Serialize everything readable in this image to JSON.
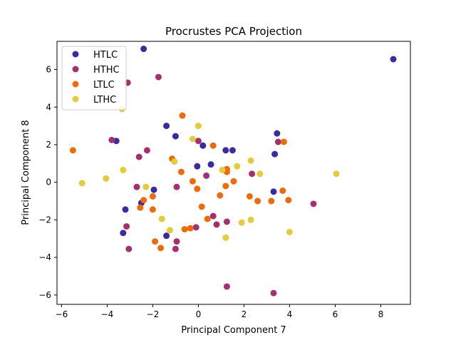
{
  "chart_data": {
    "type": "scatter",
    "title": "Procrustes PCA Projection",
    "xlabel": "Principal Component 7",
    "ylabel": "Principal Component 8",
    "xlim": [
      -6.2,
      9.3
    ],
    "ylim": [
      -6.5,
      7.5
    ],
    "xticks": [
      -6,
      -4,
      -2,
      0,
      2,
      4,
      6,
      8
    ],
    "yticks": [
      -6,
      -4,
      -2,
      0,
      2,
      4,
      6
    ],
    "grid": false,
    "legend_position": "top-left",
    "series": [
      {
        "name": "HTLC",
        "color": "#3a2ba0",
        "x": [
          -2.4,
          8.55,
          -1.4,
          -1.0,
          -3.6,
          3.45,
          0.2,
          1.2,
          1.5,
          3.35,
          0.55,
          -0.05,
          -1.95,
          3.3,
          -2.5,
          -3.2,
          -3.3,
          -1.4
        ],
        "y": [
          7.1,
          6.55,
          3.0,
          2.45,
          2.2,
          2.6,
          1.95,
          1.7,
          1.7,
          1.5,
          0.95,
          0.85,
          -0.4,
          -0.5,
          -1.1,
          -1.45,
          -2.7,
          -2.85
        ]
      },
      {
        "name": "HTHC",
        "color": "#a3306f",
        "x": [
          -1.75,
          -3.1,
          -3.8,
          3.5,
          0.0,
          -2.25,
          -2.6,
          2.35,
          0.35,
          -2.7,
          -0.95,
          5.05,
          0.65,
          1.25,
          0.8,
          -3.15,
          -0.95,
          -0.1,
          -1.0,
          -3.05,
          1.25,
          3.3
        ],
        "y": [
          5.6,
          5.3,
          2.25,
          2.15,
          2.2,
          1.7,
          1.35,
          0.45,
          0.35,
          -0.25,
          -0.25,
          -1.15,
          -1.8,
          -2.1,
          -2.25,
          -2.35,
          -3.15,
          -2.4,
          -3.55,
          -3.55,
          -5.55,
          -5.9
        ],
        "note": ""
      },
      {
        "name": "LTLC",
        "color": "#ec6b0d",
        "x": [
          -0.7,
          -5.5,
          3.75,
          0.65,
          -1.15,
          -0.75,
          1.25,
          1.25,
          -0.25,
          1.55,
          1.2,
          -0.05,
          3.7,
          2.25,
          3.95,
          2.6,
          3.2,
          0.95,
          -2.0,
          0.15,
          -2.55,
          -2.4,
          -2.0,
          0.4,
          -0.6,
          -0.35,
          -1.65,
          -1.9
        ],
        "y": [
          3.55,
          1.7,
          2.15,
          1.95,
          1.25,
          0.55,
          0.7,
          0.55,
          0.05,
          0.05,
          -0.2,
          -0.35,
          -0.45,
          -0.75,
          -0.95,
          -1.0,
          -1.0,
          -0.7,
          -0.75,
          -1.3,
          -1.35,
          -0.95,
          -1.45,
          -1.95,
          -2.5,
          -2.45,
          -3.5,
          -3.15
        ]
      },
      {
        "name": "LTHC",
        "color": "#e3cb3d",
        "x": [
          -3.35,
          0.0,
          -0.25,
          2.3,
          -1.05,
          1.7,
          -3.3,
          1.05,
          6.05,
          2.7,
          -4.05,
          -5.1,
          -2.3,
          -1.6,
          1.9,
          2.3,
          -1.25,
          1.2,
          4.0
        ],
        "y": [
          3.9,
          3.0,
          2.3,
          1.15,
          1.1,
          0.85,
          0.65,
          0.65,
          0.45,
          0.45,
          0.2,
          -0.05,
          -0.25,
          -1.95,
          -2.15,
          -2.0,
          -2.55,
          -2.95,
          -2.65
        ]
      }
    ]
  }
}
